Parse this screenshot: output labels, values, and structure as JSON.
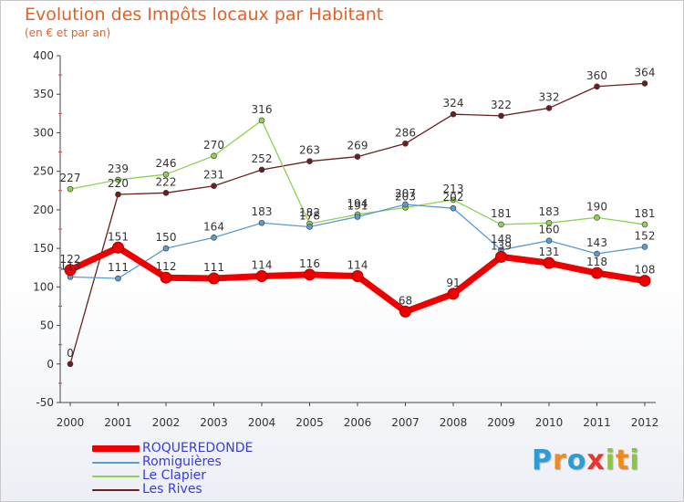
{
  "chart_data": {
    "type": "line",
    "title": "Evolution des Impôts locaux par Habitant",
    "subtitle": "(en € et par an)",
    "categories": [
      "2000",
      "2001",
      "2002",
      "2003",
      "2004",
      "2005",
      "2006",
      "2007",
      "2008",
      "2009",
      "2010",
      "2011",
      "2012"
    ],
    "ylim": [
      -50,
      400
    ],
    "yticks": [
      -50,
      0,
      50,
      100,
      150,
      200,
      250,
      300,
      350,
      400
    ],
    "grid": false,
    "legend_position": "bottom-left",
    "series": [
      {
        "name": "Les Rives",
        "color": "#6b1f1f",
        "values": [
          0,
          220,
          222,
          231,
          252,
          263,
          269,
          286,
          324,
          322,
          332,
          360,
          364
        ]
      },
      {
        "name": "Le Clapier",
        "color": "#8fd150",
        "values": [
          227,
          239,
          246,
          270,
          316,
          182,
          194,
          203,
          213,
          181,
          183,
          190,
          181
        ]
      },
      {
        "name": "Romiguières",
        "color": "#5a9bd0",
        "values": [
          113,
          111,
          150,
          164,
          183,
          178,
          191,
          207,
          202,
          148,
          160,
          143,
          152
        ]
      },
      {
        "name": "ROQUEREDONDE",
        "color": "#ee0000",
        "values": [
          122,
          151,
          112,
          111,
          114,
          116,
          114,
          68,
          91,
          139,
          131,
          118,
          108
        ]
      }
    ]
  },
  "legend": {
    "items": [
      {
        "label": "ROQUEREDONDE",
        "color": "#ee0000"
      },
      {
        "label": "Romiguières",
        "color": "#5a9bd0"
      },
      {
        "label": "Le Clapier",
        "color": "#8fd150"
      },
      {
        "label": "Les Rives",
        "color": "#6b1f1f"
      }
    ]
  },
  "brand": {
    "letters": [
      "P",
      "r",
      "o",
      "x",
      "i",
      "t",
      "i"
    ],
    "colors": [
      "#2f9bd6",
      "#f08a1c",
      "#2f9bd6",
      "#e8352f",
      "#8cc63f",
      "#f08a1c",
      "#8cc63f"
    ]
  }
}
